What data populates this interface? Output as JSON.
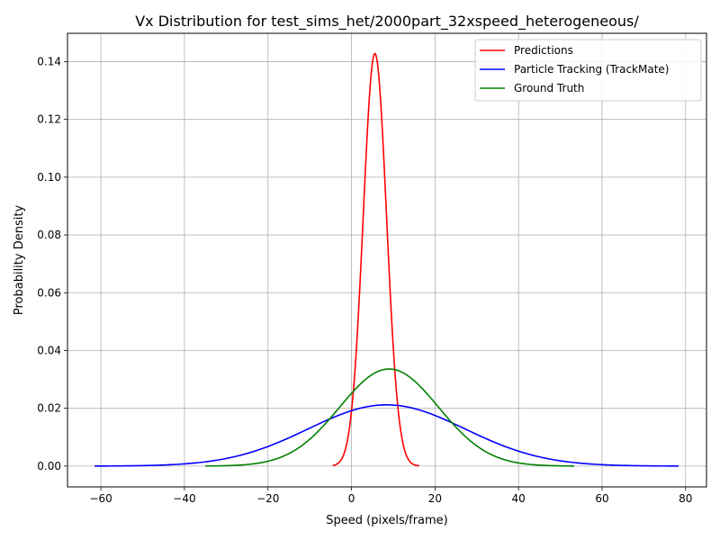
{
  "chart_data": {
    "type": "line",
    "title": "Vx Distribution for test_sims_het/2000part_32xspeed_heterogeneous/",
    "xlabel": "Speed (pixels/frame)",
    "ylabel": "Probability Density",
    "xlim": [
      -68,
      85
    ],
    "ylim": [
      -0.0072,
      0.1498
    ],
    "xticks": [
      -60,
      -40,
      -20,
      0,
      20,
      40,
      60,
      80
    ],
    "xtick_labels": [
      "−60",
      "−40",
      "−20",
      "0",
      "20",
      "40",
      "60",
      "80"
    ],
    "yticks": [
      0.0,
      0.02,
      0.04,
      0.06,
      0.08,
      0.1,
      0.12,
      0.14
    ],
    "ytick_labels": [
      "0.00",
      "0.02",
      "0.04",
      "0.06",
      "0.08",
      "0.10",
      "0.12",
      "0.14"
    ],
    "grid": true,
    "legend_position": "top-right",
    "series": [
      {
        "name": "Predictions",
        "color": "#ff0000",
        "mean": 5.6,
        "std": 2.79,
        "x_range": [
          -4.5,
          16.2
        ],
        "peak": 0.1428
      },
      {
        "name": "Particle Tracking (TrackMate)",
        "color": "#0000ff",
        "mean": 8.4,
        "std": 18.8,
        "x_range": [
          -61.5,
          78.3
        ],
        "peak": 0.0212
      },
      {
        "name": "Ground Truth",
        "color": "#008000",
        "mean": 9.0,
        "std": 11.85,
        "x_range": [
          -35.0,
          53.3
        ],
        "peak": 0.0336
      }
    ]
  }
}
